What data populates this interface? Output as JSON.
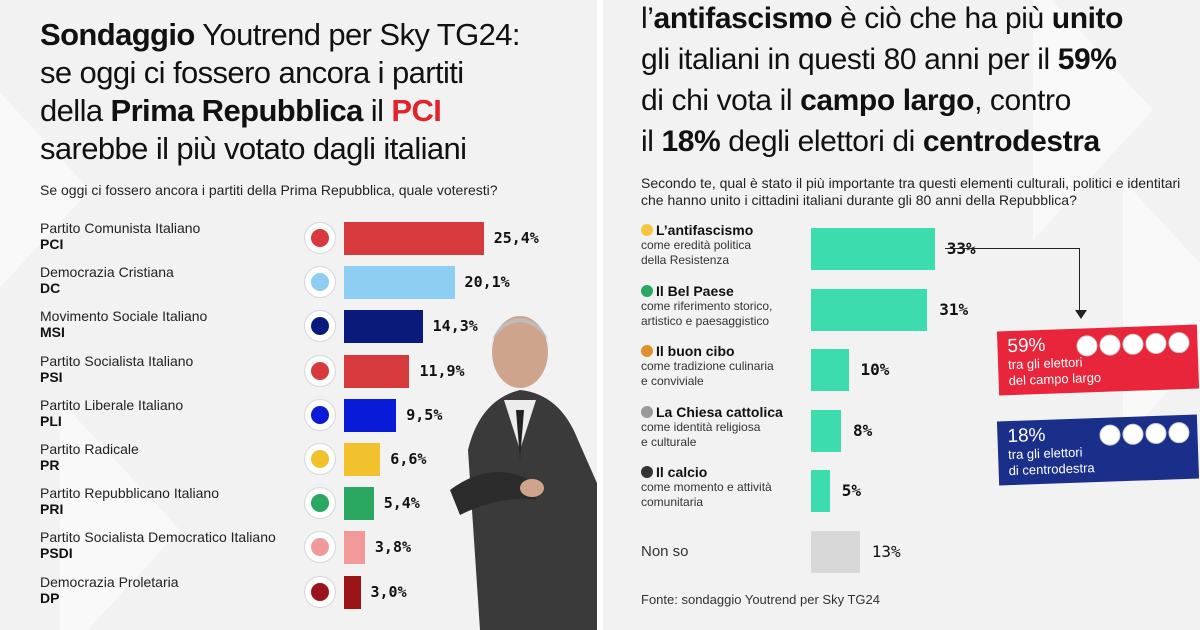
{
  "colors": {
    "pci": "#d63a3d",
    "dc": "#8dcef2",
    "msi": "#0a1a7a",
    "psi": "#d63a3d",
    "pli": "#0a1bd8",
    "pr": "#f2c12e",
    "pri": "#2aa862",
    "psdi": "#f29a9a",
    "dp": "#9a1418",
    "teal": "#3cdcae",
    "grey": "#d8d8d8",
    "red_accent": "#e0242c",
    "callout_red": "#e8253a",
    "callout_blue": "#1a2f8a"
  },
  "left": {
    "title_bold1": "Sondaggio",
    "title_rest1": " Youtrend per Sky TG24:",
    "title_line2": "se oggi ci fossero ancora i partiti",
    "title_line3a": "della ",
    "title_bold3": "Prima Repubblica",
    "title_line3b": " il ",
    "title_red": "PCI",
    "title_line4": "sarebbe il più votato dagli italiani",
    "subtitle": "Se oggi ci fossero ancora i partiti della Prima Repubblica, quale voteresti?"
  },
  "right": {
    "title_line1a": "l’",
    "title_bold1a": "antifascismo",
    "title_line1b": " è ciò che ha più ",
    "title_bold1b": "unito",
    "title_line2a": "gli italiani in questi 80 anni per il ",
    "title_bold2": "59%",
    "title_line3a": "di chi vota il ",
    "title_bold3": "campo largo",
    "title_line3b": ", contro",
    "title_line4a": "il ",
    "title_bold4a": "18%",
    "title_line4b": " degli elettori di ",
    "title_bold4b": "centrodestra",
    "subtitle": "Secondo te, qual è stato il più importante tra questi elementi culturali, politici e identitari che hanno unito i cittadini italiani durante gli 80 anni della Repubblica?",
    "nonso_label": "Non so",
    "callout_red_pct": "59%",
    "callout_red_text1": "tra gli elettori",
    "callout_red_text2": "del campo largo",
    "callout_blue_pct": "18%",
    "callout_blue_text1": "tra gli elettori",
    "callout_blue_text2": "di centrodestra",
    "source": "Fonte: sondaggio Youtrend per Sky TG24"
  },
  "chart_data": [
    {
      "type": "bar",
      "categories": [
        "Partito Comunista Italiano",
        "Democrazia Cristiana",
        "Movimento Sociale Italiano",
        "Partito Socialista Italiano",
        "Partito Liberale Italiano",
        "Partito Radicale",
        "Partito Repubblicano Italiano",
        "Partito Socialista Democratico Italiano",
        "Democrazia Proletaria"
      ],
      "abbreviations": [
        "PCI",
        "DC",
        "MSI",
        "PSI",
        "PLI",
        "PR",
        "PRI",
        "PSDI",
        "DP"
      ],
      "values": [
        25.4,
        20.1,
        14.3,
        11.9,
        9.5,
        6.6,
        5.4,
        3.8,
        3.0
      ],
      "value_labels": [
        "25,4%",
        "20,1%",
        "14,3%",
        "11,9%",
        "9,5%",
        "6,6%",
        "5,4%",
        "3,8%",
        "3,0%"
      ],
      "title": "Se oggi ci fossero ancora i partiti della Prima Repubblica, quale voteresti?"
    },
    {
      "type": "bar",
      "categories": [
        "L’antifascismo",
        "Il Bel Paese",
        "Il buon cibo",
        "La Chiesa cattolica",
        "Il calcio",
        "Non so"
      ],
      "descriptions": [
        [
          "come eredità politica",
          "della Resistenza"
        ],
        [
          "come riferimento storico,",
          "artistico e paesaggistico"
        ],
        [
          "come tradizione culinaria",
          "e conviviale"
        ],
        [
          "come identità religiosa",
          "e culturale"
        ],
        [
          "come momento e attività",
          "comunitaria"
        ],
        []
      ],
      "values": [
        33,
        31,
        10,
        8,
        5,
        13
      ],
      "value_labels": [
        "33%",
        "31%",
        "10%",
        "8%",
        "5%",
        "13%"
      ],
      "title": "Secondo te, qual è stato il più importante tra questi elementi culturali, politici e identitari che hanno unito i cittadini italiani durante gli 80 anni della Repubblica?"
    }
  ]
}
